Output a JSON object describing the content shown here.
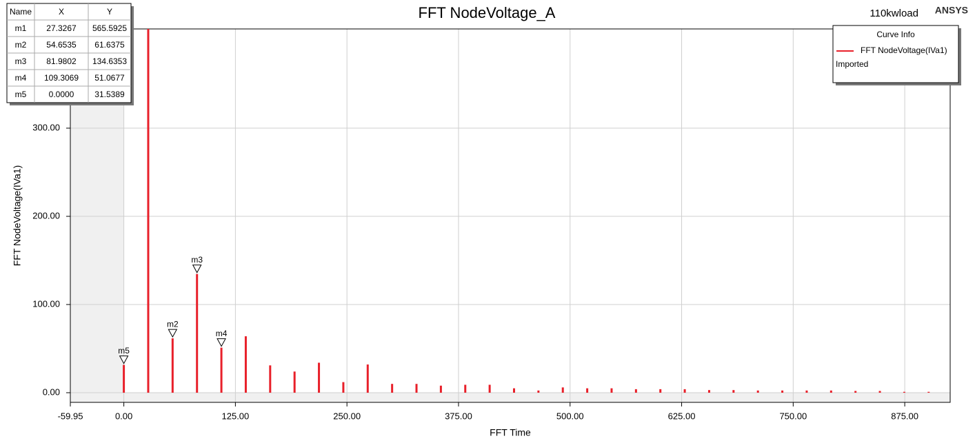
{
  "chart_data": {
    "type": "stem",
    "title": "FFT NodeVoltage_A",
    "corner_label": "110kwload",
    "brand": "ANSYS",
    "xlabel": "FFT Time",
    "ylabel": "FFT NodeVoltage(IVa1)",
    "legend_title": "Curve Info",
    "legend_note": "Imported",
    "x": [
      0,
      27.3267,
      54.6535,
      81.9802,
      109.3069,
      136.6336,
      163.9604,
      191.2871,
      218.6138,
      245.9406,
      273.2673,
      300.594,
      327.9208,
      355.2475,
      382.5742,
      409.901,
      437.2277,
      464.5544,
      491.8812,
      519.2079,
      546.5346,
      573.8614,
      601.1881,
      628.5148,
      655.8416,
      683.1683,
      710.495,
      737.8218,
      765.1485,
      792.4752,
      819.802,
      847.1287,
      874.4554,
      901.7822
    ],
    "series": [
      {
        "name": "FFT NodeVoltage(IVa1)",
        "color": "#e8202a",
        "values": [
          31.5389,
          565.5925,
          61.6375,
          134.6353,
          51.0677,
          64,
          31,
          24,
          34,
          12,
          32,
          10,
          10,
          8,
          9,
          9,
          5,
          2.5,
          6,
          5,
          5,
          4,
          4,
          4,
          3,
          3,
          2.5,
          2.5,
          2.5,
          2.5,
          2,
          2,
          1,
          1
        ]
      }
    ],
    "xlim": [
      -59.95,
      925.9
    ],
    "ylim": [
      -10.94,
      412.5
    ],
    "xticks": [
      {
        "value": -59.95,
        "label": "-59.95"
      },
      {
        "value": 0,
        "label": "0.00"
      },
      {
        "value": 125,
        "label": "125.00"
      },
      {
        "value": 250,
        "label": "250.00"
      },
      {
        "value": 375,
        "label": "375.00"
      },
      {
        "value": 500,
        "label": "500.00"
      },
      {
        "value": 625,
        "label": "625.00"
      },
      {
        "value": 750,
        "label": "750.00"
      },
      {
        "value": 875,
        "label": "875.00"
      }
    ],
    "yticks": [
      {
        "value": 0,
        "label": "0.00"
      },
      {
        "value": 100,
        "label": "100.00"
      },
      {
        "value": 200,
        "label": "200.00"
      },
      {
        "value": 300,
        "label": "300.00"
      }
    ],
    "grid": true,
    "markers": {
      "columns": [
        "Name",
        "X",
        "Y"
      ],
      "names": [
        "m1",
        "m2",
        "m3",
        "m4",
        "m5"
      ],
      "x": [
        27.3267,
        54.6535,
        81.9802,
        109.3069,
        0
      ],
      "x_labels": [
        "27.3267",
        "54.6535",
        "81.9802",
        "109.3069",
        "0.0000"
      ],
      "y": [
        565.5925,
        61.6375,
        134.6353,
        51.0677,
        31.5389
      ],
      "y_labels": [
        "565.5925",
        "61.6375",
        "134.6353",
        "51.0677",
        "31.5389"
      ]
    }
  }
}
